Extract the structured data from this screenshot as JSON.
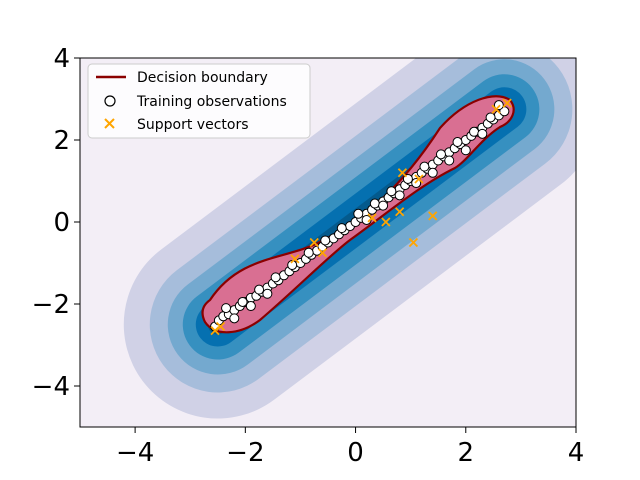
{
  "chart_data": {
    "type": "scatter",
    "title": "",
    "xlabel": "",
    "ylabel": "",
    "xlim": [
      -5,
      4
    ],
    "ylim": [
      -5,
      4
    ],
    "x_ticks": [
      -4,
      -2,
      0,
      2,
      4
    ],
    "y_ticks": [
      -4,
      -2,
      0,
      2,
      4
    ],
    "x_tick_labels": [
      "−4",
      "−2",
      "0",
      "2",
      "4"
    ],
    "y_tick_labels": [
      "−4",
      "−2",
      "0",
      "2",
      "4"
    ],
    "grid": false,
    "legend_position": "top-left",
    "background_contours": {
      "colormap": "Blues",
      "colors": [
        "#f3eef6",
        "#d0d1e6",
        "#a6bddb",
        "#74a9cf",
        "#3690c0",
        "#0570b0",
        "#045a8d"
      ]
    },
    "decision_region_fill": "#d96f92",
    "legend": [
      {
        "label": "Decision boundary",
        "marker": "line",
        "color": "#8b0000"
      },
      {
        "label": "Training observations",
        "marker": "open-circle",
        "color": "#000000"
      },
      {
        "label": "Support vectors",
        "marker": "x",
        "color": "#ffa500"
      }
    ],
    "series": [
      {
        "name": "Training observations",
        "marker": "open-circle",
        "x": [
          -2.55,
          -2.48,
          -2.4,
          -2.3,
          -2.2,
          -2.1,
          -2.0,
          -1.9,
          -1.8,
          -1.7,
          -1.6,
          -1.5,
          -1.4,
          -1.3,
          -1.2,
          -1.1,
          -1.0,
          -0.9,
          -0.8,
          -0.7,
          -0.6,
          -0.5,
          -0.4,
          -0.3,
          -0.2,
          -0.1,
          0.0,
          0.1,
          0.2,
          0.3,
          0.4,
          0.5,
          0.6,
          0.7,
          0.8,
          0.9,
          1.0,
          1.1,
          1.2,
          1.3,
          1.4,
          1.5,
          1.6,
          1.7,
          1.8,
          1.9,
          2.0,
          2.1,
          2.2,
          2.3,
          2.4,
          2.5,
          2.6,
          2.7,
          -2.35,
          -2.05,
          -1.75,
          -1.45,
          -1.15,
          -0.85,
          -0.55,
          -0.25,
          0.05,
          0.35,
          0.65,
          0.95,
          1.25,
          1.55,
          1.85,
          2.15,
          2.45,
          -2.2,
          -1.9,
          -1.6,
          0.2,
          0.5,
          0.8,
          1.1,
          1.4,
          1.7,
          2.0,
          2.3,
          2.6
        ],
        "y": [
          -2.55,
          -2.4,
          -2.3,
          -2.25,
          -2.15,
          -2.05,
          -1.95,
          -1.85,
          -1.8,
          -1.7,
          -1.6,
          -1.5,
          -1.42,
          -1.3,
          -1.2,
          -1.1,
          -1.0,
          -0.9,
          -0.8,
          -0.7,
          -0.6,
          -0.5,
          -0.4,
          -0.3,
          -0.2,
          -0.1,
          0.0,
          0.1,
          0.2,
          0.3,
          0.4,
          0.5,
          0.6,
          0.7,
          0.8,
          0.9,
          1.0,
          1.1,
          1.2,
          1.3,
          1.4,
          1.5,
          1.6,
          1.7,
          1.8,
          1.9,
          2.0,
          2.1,
          2.2,
          2.3,
          2.4,
          2.5,
          2.6,
          2.7,
          -2.1,
          -1.95,
          -1.65,
          -1.35,
          -1.05,
          -0.75,
          -0.45,
          -0.15,
          0.2,
          0.45,
          0.75,
          1.05,
          1.35,
          1.65,
          1.95,
          2.2,
          2.55,
          -2.35,
          -2.05,
          -1.75,
          0.05,
          0.4,
          0.65,
          0.95,
          1.2,
          1.5,
          1.75,
          2.15,
          2.85
        ]
      },
      {
        "name": "Support vectors",
        "marker": "x",
        "x": [
          -2.55,
          -2.45,
          -1.1,
          -0.75,
          -0.6,
          0.3,
          0.55,
          0.8,
          0.85,
          1.05,
          1.15,
          1.4,
          2.55,
          2.75
        ],
        "y": [
          -2.65,
          -2.55,
          -0.9,
          -0.5,
          -0.75,
          0.1,
          0.0,
          0.25,
          1.2,
          -0.5,
          1.05,
          0.15,
          2.75,
          2.9
        ]
      }
    ]
  }
}
